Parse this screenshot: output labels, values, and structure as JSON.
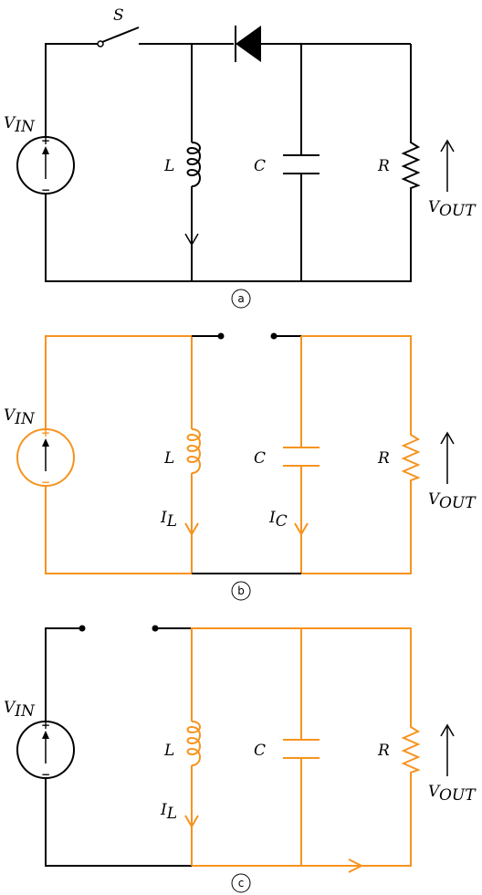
{
  "colors": {
    "active": "#f7931e",
    "inactive": "#000000"
  },
  "labels": {
    "vin_base": "V",
    "vin_sub": "IN",
    "vout_base": "V",
    "vout_sub": "OUT",
    "switch": "S",
    "inductor": "L",
    "capacitor": "C",
    "resistor": "R",
    "il_base": "I",
    "il_sub": "L",
    "ic_base": "I",
    "ic_sub": "C",
    "source_plus": "+",
    "source_minus": "−"
  },
  "panels": [
    {
      "id": "a",
      "caption": "a"
    },
    {
      "id": "b",
      "caption": "b"
    },
    {
      "id": "c",
      "caption": "c"
    }
  ]
}
